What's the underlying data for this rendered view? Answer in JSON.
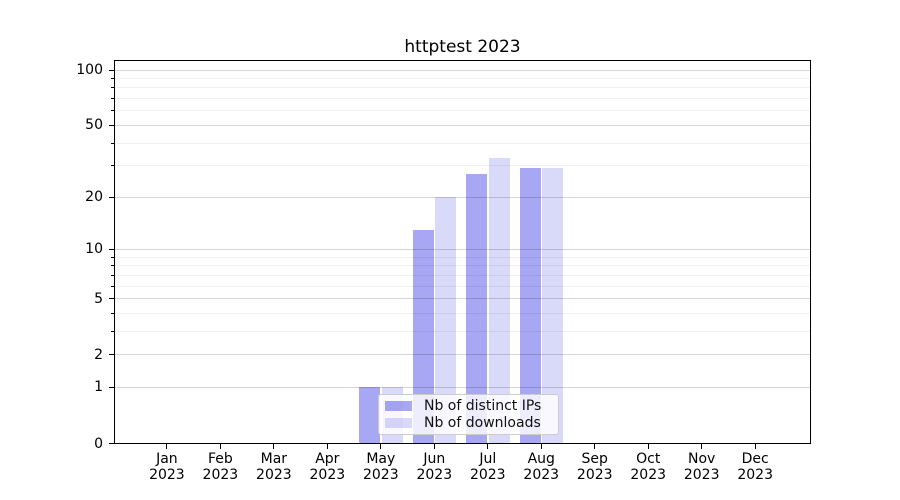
{
  "title": "httptest 2023",
  "chart_data": {
    "type": "bar",
    "title": "httptest 2023",
    "categories": [
      "Jan 2023",
      "Feb 2023",
      "Mar 2023",
      "Apr 2023",
      "May 2023",
      "Jun 2023",
      "Jul 2023",
      "Aug 2023",
      "Sep 2023",
      "Oct 2023",
      "Nov 2023",
      "Dec 2023"
    ],
    "series": [
      {
        "name": "Nb of distinct IPs",
        "color": "#a7a7f2",
        "color_rgba": "rgba(64,64,228,0.46)",
        "values": [
          0,
          0,
          0,
          0,
          1,
          13,
          27,
          29,
          0,
          0,
          0,
          0
        ]
      },
      {
        "name": "Nb of downloads",
        "color": "#d9d9fa",
        "color_rgba": "rgba(64,64,228,0.20)",
        "values": [
          0,
          0,
          0,
          0,
          1,
          20,
          33,
          29,
          0,
          0,
          0,
          0
        ]
      }
    ],
    "xlabel": "",
    "ylabel": "",
    "y_axis": {
      "scale": "log1p",
      "major_ticks": [
        100,
        50,
        20,
        10,
        5,
        2,
        1,
        0
      ],
      "minor_ticks": [
        3,
        4,
        6,
        7,
        8,
        9,
        30,
        40,
        60,
        70,
        80,
        90
      ],
      "ylim": [
        0,
        113
      ]
    },
    "grid": "horizontal major+minor, drawn over bars",
    "legend_position": "lower center"
  },
  "legend": {
    "items": [
      "Nb of distinct IPs",
      "Nb of downloads"
    ]
  }
}
